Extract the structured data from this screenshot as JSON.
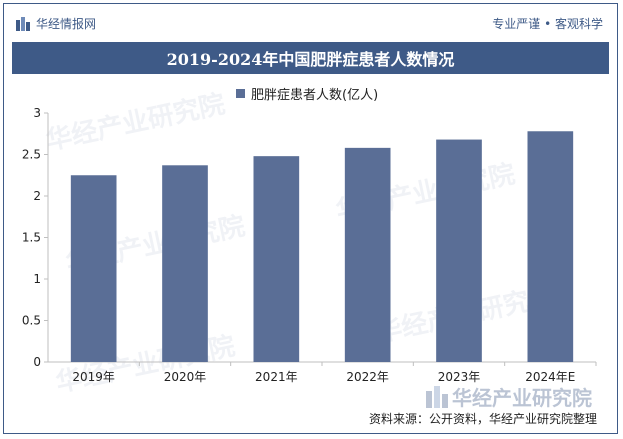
{
  "header": {
    "brand": "华经情报网",
    "slogan": "专业严谨 • 客观科学"
  },
  "footer": {
    "source": "资料来源：公开资料，华经产业研究院整理"
  },
  "watermark": {
    "text": "华经产业研究院"
  },
  "colors": {
    "accent": "#3e5a87",
    "bar": "#5a6e96"
  },
  "chart_data": {
    "type": "bar",
    "title": "2019-2024年中国肥胖症患者人数情况",
    "categories": [
      "2019年",
      "2020年",
      "2021年",
      "2022年",
      "2023年",
      "2024年E"
    ],
    "series": [
      {
        "name": "肥胖症患者人数(亿人)",
        "values": [
          2.25,
          2.37,
          2.48,
          2.58,
          2.68,
          2.78
        ]
      }
    ],
    "ylim": [
      0,
      3
    ],
    "yticks": [
      "0",
      "0.5",
      "1",
      "1.5",
      "2",
      "2.5",
      "3"
    ],
    "legend": "top-center",
    "grid": false
  }
}
